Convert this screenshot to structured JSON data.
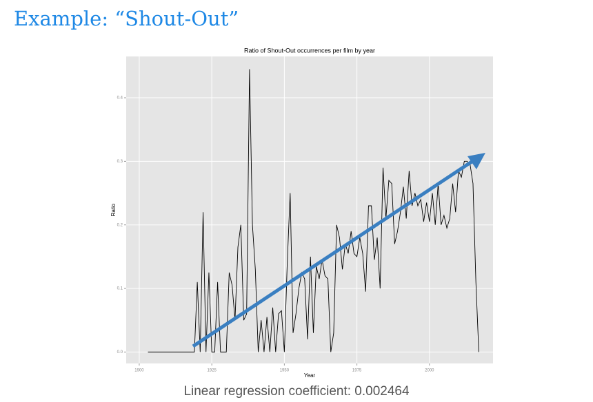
{
  "slide_title": "Example: “Shout-Out”",
  "caption": "Linear regression coefficient: 0.002464",
  "chart_data": {
    "type": "line",
    "title": "Ratio of Shout-Out occurrences per film by year",
    "x_label": "Year",
    "y_label": "Ratio",
    "x": [
      1903,
      1904,
      1905,
      1906,
      1907,
      1908,
      1909,
      1910,
      1911,
      1912,
      1913,
      1914,
      1915,
      1916,
      1917,
      1918,
      1919,
      1920,
      1921,
      1922,
      1923,
      1924,
      1925,
      1926,
      1927,
      1928,
      1929,
      1930,
      1931,
      1932,
      1933,
      1934,
      1935,
      1936,
      1937,
      1938,
      1939,
      1940,
      1941,
      1942,
      1943,
      1944,
      1945,
      1946,
      1947,
      1948,
      1949,
      1950,
      1951,
      1952,
      1953,
      1954,
      1955,
      1956,
      1957,
      1958,
      1959,
      1960,
      1961,
      1962,
      1963,
      1964,
      1965,
      1966,
      1967,
      1968,
      1969,
      1970,
      1971,
      1972,
      1973,
      1974,
      1975,
      1976,
      1977,
      1978,
      1979,
      1980,
      1981,
      1982,
      1983,
      1984,
      1985,
      1986,
      1987,
      1988,
      1989,
      1990,
      1991,
      1992,
      1993,
      1994,
      1995,
      1996,
      1997,
      1998,
      1999,
      2000,
      2001,
      2002,
      2003,
      2004,
      2005,
      2006,
      2007,
      2008,
      2009,
      2010,
      2011,
      2012,
      2013,
      2014,
      2015,
      2016,
      2017
    ],
    "values": [
      0,
      0,
      0,
      0,
      0,
      0,
      0,
      0,
      0,
      0,
      0,
      0,
      0,
      0,
      0,
      0,
      0,
      0.11,
      0,
      0.22,
      0,
      0.125,
      0,
      0,
      0.11,
      0,
      0,
      0,
      0.125,
      0.105,
      0.05,
      0.165,
      0.2,
      0.05,
      0.06,
      0.445,
      0.2,
      0.13,
      0,
      0.05,
      0,
      0.055,
      0,
      0.07,
      0,
      0.06,
      0.065,
      0,
      0.14,
      0.25,
      0.03,
      0.06,
      0.1,
      0.125,
      0.115,
      0.02,
      0.15,
      0.03,
      0.135,
      0.115,
      0.145,
      0.12,
      0.115,
      0,
      0.03,
      0.2,
      0.18,
      0.13,
      0.17,
      0.155,
      0.19,
      0.155,
      0.15,
      0.18,
      0.155,
      0.095,
      0.23,
      0.23,
      0.145,
      0.18,
      0.1,
      0.29,
      0.21,
      0.27,
      0.265,
      0.17,
      0.19,
      0.22,
      0.26,
      0.21,
      0.285,
      0.23,
      0.25,
      0.23,
      0.24,
      0.205,
      0.235,
      0.205,
      0.25,
      0.2,
      0.265,
      0.2,
      0.215,
      0.195,
      0.21,
      0.265,
      0.22,
      0.285,
      0.275,
      0.3,
      0.3,
      0.295,
      0.265,
      0.11,
      0
    ],
    "color": "#000000",
    "xlim": [
      1895.5,
      2021.9
    ],
    "ylim": [
      -0.018,
      0.465
    ],
    "xticks": [
      1900,
      1925,
      1950,
      1975,
      2000
    ],
    "yticks": [
      {
        "value": 0,
        "label": "0.0"
      },
      0.1,
      0.2,
      0.3,
      0.4
    ],
    "grid": true
  }
}
